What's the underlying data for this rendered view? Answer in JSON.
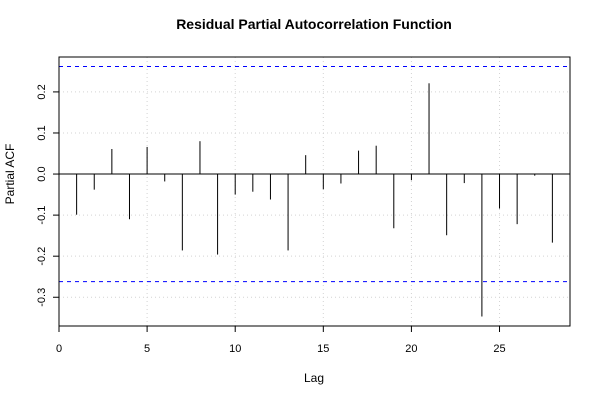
{
  "chart_data": {
    "type": "bar",
    "title": "Residual Partial Autocorrelation Function",
    "xlabel": "Lag",
    "ylabel": "Partial ACF",
    "xlim": [
      0,
      29
    ],
    "ylim": [
      -0.37,
      0.285
    ],
    "xticks": [
      0,
      5,
      10,
      15,
      20,
      25
    ],
    "yticks": [
      -0.3,
      -0.2,
      -0.1,
      0.0,
      0.1,
      0.2
    ],
    "grid": true,
    "confidence_limits": [
      0.262,
      -0.262
    ],
    "lags": [
      1,
      2,
      3,
      4,
      5,
      6,
      7,
      8,
      9,
      10,
      11,
      12,
      13,
      14,
      15,
      16,
      17,
      18,
      19,
      20,
      21,
      22,
      23,
      24,
      25,
      26,
      27,
      28
    ],
    "values": [
      -0.099,
      -0.038,
      0.061,
      -0.11,
      0.066,
      -0.018,
      -0.186,
      0.08,
      -0.196,
      -0.05,
      -0.043,
      -0.062,
      -0.186,
      0.046,
      -0.037,
      -0.023,
      0.057,
      0.069,
      -0.132,
      -0.015,
      0.221,
      -0.149,
      -0.022,
      -0.347,
      -0.084,
      -0.122,
      -0.004,
      -0.167
    ],
    "colors": {
      "spike": "#000000",
      "confidence": "#0000ff",
      "grid": "#d3d3d3"
    }
  }
}
